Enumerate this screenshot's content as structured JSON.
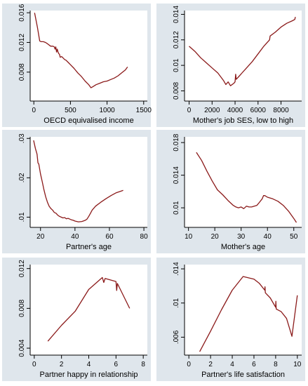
{
  "colors": {
    "background": "#dfe6ec",
    "plot": "#ffffff",
    "line": "#8b1a1a",
    "axis": "#000000"
  },
  "chart_data": [
    {
      "type": "line",
      "xlabel": "OECD equivalised income",
      "ylabel": "",
      "xlim": [
        -50,
        1550
      ],
      "ylim": [
        0.0041,
        0.0163
      ],
      "xticks": [
        0,
        500,
        1000,
        1500
      ],
      "yticks": [
        0.008,
        0.012,
        0.016
      ],
      "yticklabels": [
        "0.008",
        "0.012",
        "0.016"
      ],
      "series": [
        {
          "x": [
            10,
            50,
            80,
            100,
            130,
            160,
            190,
            230,
            260,
            280,
            290,
            300,
            310,
            320,
            330,
            340,
            350,
            360,
            380,
            400,
            420,
            440,
            470,
            500,
            550,
            600,
            650,
            700,
            750,
            780,
            800,
            850,
            900,
            950,
            1000,
            1050,
            1100,
            1150,
            1200,
            1250,
            1280
          ],
          "y": [
            0.016,
            0.014,
            0.0122,
            0.0121,
            0.0121,
            0.012,
            0.0118,
            0.0115,
            0.0115,
            0.0114,
            0.0111,
            0.0114,
            0.0107,
            0.0111,
            0.0107,
            0.0105,
            0.0104,
            0.01,
            0.0101,
            0.0099,
            0.0097,
            0.0096,
            0.0093,
            0.009,
            0.0085,
            0.0079,
            0.0074,
            0.0068,
            0.0063,
            0.0059,
            0.006,
            0.0063,
            0.0065,
            0.0067,
            0.0068,
            0.007,
            0.0072,
            0.0075,
            0.0079,
            0.0083,
            0.0087
          ]
        }
      ]
    },
    {
      "type": "line",
      "xlabel": "Mother's job SES, low to high",
      "ylabel": "",
      "xlim": [
        -400,
        9800
      ],
      "ylim": [
        0.0072,
        0.0143
      ],
      "xticks": [
        0,
        2000,
        4000,
        6000,
        8000
      ],
      "yticks": [
        0.008,
        0.01,
        0.012,
        0.014
      ],
      "yticklabels": [
        "0.008",
        "0.01",
        "0.012",
        "0.014"
      ],
      "series": [
        {
          "x": [
            0,
            500,
            1000,
            1500,
            2000,
            2500,
            3000,
            3200,
            3400,
            3600,
            3900,
            4000,
            4050,
            4100,
            4300,
            4600,
            5000,
            5500,
            6000,
            6500,
            7000,
            7050,
            7500,
            8000,
            8500,
            9000,
            9200,
            9250
          ],
          "y": [
            0.0115,
            0.0111,
            0.0106,
            0.0102,
            0.0098,
            0.0094,
            0.0088,
            0.0085,
            0.0087,
            0.0084,
            0.0086,
            0.0087,
            0.0093,
            0.0089,
            0.0091,
            0.0094,
            0.0098,
            0.0103,
            0.0109,
            0.0115,
            0.012,
            0.0123,
            0.0126,
            0.013,
            0.0133,
            0.0135,
            0.0136,
            0.0138
          ]
        }
      ]
    },
    {
      "type": "line",
      "xlabel": "Partner's age",
      "ylabel": "",
      "xlim": [
        14,
        82
      ],
      "ylim": [
        0.0074,
        0.0304
      ],
      "xticks": [
        20,
        40,
        60,
        80
      ],
      "yticks": [
        0.01,
        0.02,
        0.03
      ],
      "yticklabels": [
        ".01",
        ".02",
        ".03"
      ],
      "series": [
        {
          "x": [
            16,
            17,
            18,
            18.5,
            19,
            20,
            21,
            22,
            23,
            24,
            25,
            26,
            27,
            28,
            29,
            30,
            31,
            32,
            33,
            34,
            35,
            36,
            37,
            38,
            39,
            40,
            42,
            44,
            46,
            47,
            48,
            49,
            50,
            52,
            55,
            58,
            61,
            64,
            68
          ],
          "y": [
            0.0295,
            0.0275,
            0.026,
            0.0238,
            0.0235,
            0.021,
            0.019,
            0.017,
            0.0152,
            0.0138,
            0.0128,
            0.0122,
            0.0118,
            0.0112,
            0.011,
            0.0105,
            0.0102,
            0.01,
            0.0098,
            0.0099,
            0.0096,
            0.0097,
            0.0095,
            0.0093,
            0.0092,
            0.009,
            0.0088,
            0.0089,
            0.0092,
            0.0095,
            0.0102,
            0.011,
            0.0118,
            0.0128,
            0.0138,
            0.0147,
            0.0155,
            0.0162,
            0.0168
          ]
        }
      ]
    },
    {
      "type": "line",
      "xlabel": "Mother's age",
      "ylabel": "",
      "xlim": [
        8.5,
        53
      ],
      "ylim": [
        0.0076,
        0.0187
      ],
      "xticks": [
        10,
        20,
        30,
        40,
        50
      ],
      "yticks": [
        0.01,
        0.014,
        0.018
      ],
      "yticklabels": [
        "0.01",
        "0.014",
        "0.018"
      ],
      "series": [
        {
          "x": [
            13,
            15,
            17,
            19,
            21,
            23,
            25,
            27,
            28,
            29,
            30,
            31,
            32,
            33,
            34,
            35,
            36,
            37,
            38,
            38.5,
            39,
            40,
            42,
            44,
            46,
            48,
            50,
            51
          ],
          "y": [
            0.0168,
            0.0158,
            0.0145,
            0.0133,
            0.0122,
            0.0116,
            0.0109,
            0.0103,
            0.0101,
            0.01,
            0.0101,
            0.0099,
            0.0102,
            0.0101,
            0.0101,
            0.0102,
            0.0103,
            0.0107,
            0.0111,
            0.0115,
            0.0115,
            0.0113,
            0.0111,
            0.0108,
            0.0103,
            0.0096,
            0.0087,
            0.0082
          ]
        }
      ]
    },
    {
      "type": "line",
      "xlabel": "Partner happy in relationship",
      "ylabel": "",
      "xlim": [
        -0.3,
        8.3
      ],
      "ylim": [
        0.0033,
        0.0124
      ],
      "xticks": [
        0,
        2,
        4,
        6,
        8
      ],
      "yticks": [
        0.004,
        0.008,
        0.012
      ],
      "yticklabels": [
        "0.004",
        "0.008",
        "0.012"
      ],
      "series": [
        {
          "x": [
            1,
            2,
            3,
            4,
            5,
            5.1,
            5.2,
            6,
            6.05,
            6.1,
            7
          ],
          "y": [
            0.0047,
            0.0063,
            0.0077,
            0.0099,
            0.0111,
            0.0106,
            0.011,
            0.0107,
            0.0098,
            0.0105,
            0.008
          ]
        }
      ]
    },
    {
      "type": "line",
      "xlabel": "Partner's life satisfaction",
      "ylabel": "",
      "xlim": [
        -0.4,
        10.4
      ],
      "ylim": [
        0.0039,
        0.0145
      ],
      "xticks": [
        0,
        2,
        4,
        6,
        8,
        10
      ],
      "yticks": [
        0.006,
        0.01,
        0.014
      ],
      "yticklabels": [
        ".006",
        ".01",
        ".014"
      ],
      "series": [
        {
          "x": [
            1,
            2,
            3,
            4,
            5,
            6,
            6.5,
            7,
            7.02,
            7.05,
            7.5,
            8,
            8.02,
            8.05,
            8.5,
            9,
            9.5,
            10
          ],
          "y": [
            0.0043,
            0.0067,
            0.0092,
            0.0115,
            0.0131,
            0.0128,
            0.0123,
            0.0115,
            0.0119,
            0.0112,
            0.0106,
            0.0095,
            0.0102,
            0.0093,
            0.009,
            0.0082,
            0.0061,
            0.0109
          ]
        }
      ]
    }
  ]
}
